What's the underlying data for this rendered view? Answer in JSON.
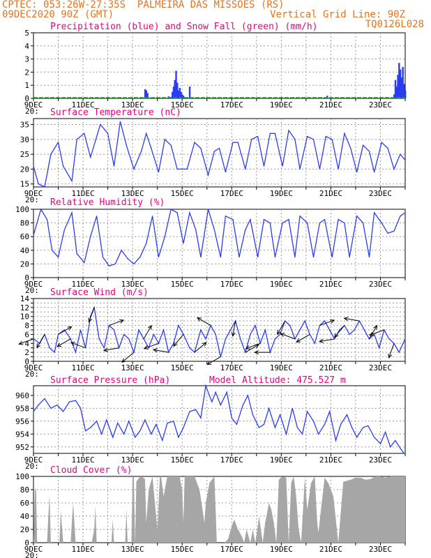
{
  "header": {
    "source": "CPTEC:",
    "coords": "053:26W-27:35S",
    "location": "PALMEIRA DAS MISSOES (RS)",
    "run": "09DEC2020 90Z (GMT)",
    "grid_note": "Vertical Grid Line: 90Z",
    "model_code": "TQ0126L028"
  },
  "x_ticks": [
    "9DEC",
    "11DEC",
    "13DEC",
    "15DEC",
    "17DEC",
    "19DEC",
    "21DEC",
    "23DEC"
  ],
  "year_fragment": "20:",
  "colors": {
    "header": "#e8731a",
    "title": "#e6007e",
    "line": "#2a3cf0",
    "snow": "#1aa51a",
    "cloud": "#a6a6a6"
  },
  "chart_data": [
    {
      "id": "precip",
      "type": "bar",
      "title": "Precipitation (blue) and Snow Fall (green) (mm/h)",
      "ylim": [
        0,
        5
      ],
      "yticks": [
        0,
        1,
        2,
        3,
        4,
        5
      ],
      "xlim": [
        0,
        15
      ],
      "grid": true,
      "x": [
        4.5,
        4.55,
        4.6,
        5.45,
        5.55,
        5.6,
        5.65,
        5.7,
        5.75,
        5.8,
        5.85,
        5.9,
        5.95,
        6.0,
        6.05,
        6.3,
        11.85,
        14.55,
        14.6,
        14.65,
        14.7,
        14.75,
        14.8,
        14.85,
        14.9,
        14.95,
        15.0
      ],
      "values": [
        0.7,
        0.6,
        0.4,
        0.15,
        0.1,
        0.5,
        0.9,
        1.4,
        2.1,
        1.2,
        0.6,
        0.8,
        0.5,
        0.3,
        0.2,
        0.9,
        0.2,
        0.3,
        1.4,
        0.9,
        1.8,
        2.7,
        2.2,
        1.6,
        2.4,
        1.1,
        0.6
      ],
      "snow": "0 throughout"
    },
    {
      "id": "temp",
      "type": "line",
      "title": "Surface Temperature (nC)",
      "ylim": [
        14,
        37
      ],
      "yticks": [
        15,
        20,
        25,
        30,
        35
      ],
      "xlim": [
        0,
        15
      ],
      "grid": true,
      "x": [
        0,
        0.2,
        0.45,
        0.7,
        1.0,
        1.2,
        1.55,
        1.75,
        2.05,
        2.3,
        2.7,
        3.0,
        3.25,
        3.5,
        3.75,
        4.05,
        4.35,
        4.55,
        4.75,
        5.05,
        5.3,
        5.55,
        5.8,
        6.2,
        6.5,
        6.75,
        7.05,
        7.3,
        7.5,
        7.75,
        8.05,
        8.25,
        8.55,
        8.8,
        9.05,
        9.3,
        9.55,
        9.75,
        10.05,
        10.3,
        10.55,
        10.75,
        11.05,
        11.3,
        11.55,
        11.8,
        12.05,
        12.3,
        12.55,
        12.8,
        13.05,
        13.3,
        13.55,
        13.75,
        14.05,
        14.3,
        14.55,
        14.8,
        15.0
      ],
      "values": [
        21,
        15,
        14,
        25,
        29,
        21,
        16,
        30,
        32,
        24,
        35,
        32,
        21,
        36,
        28,
        20,
        26,
        32,
        27,
        19,
        30,
        28,
        20,
        20,
        29,
        27,
        18,
        26,
        27,
        19,
        29,
        29,
        20,
        30,
        31,
        21,
        32,
        32,
        21,
        33,
        30,
        20,
        31,
        30,
        20,
        31,
        30,
        20,
        32,
        27,
        19,
        28,
        26,
        19,
        29,
        27,
        20,
        25,
        23
      ]
    },
    {
      "id": "rh",
      "type": "line",
      "title": "Relative Humidity (%)",
      "ylim": [
        0,
        100
      ],
      "yticks": [
        0,
        20,
        40,
        60,
        80,
        100
      ],
      "xlim": [
        0,
        15
      ],
      "grid": true,
      "x": [
        0,
        0.3,
        0.55,
        0.75,
        1.0,
        1.25,
        1.55,
        1.75,
        2.05,
        2.3,
        2.55,
        2.8,
        3.05,
        3.3,
        3.55,
        3.8,
        4.05,
        4.3,
        4.55,
        4.8,
        5.05,
        5.3,
        5.55,
        5.8,
        6.05,
        6.3,
        6.55,
        6.75,
        7.05,
        7.3,
        7.55,
        7.75,
        8.05,
        8.3,
        8.55,
        8.75,
        9.05,
        9.3,
        9.55,
        9.75,
        10.05,
        10.3,
        10.55,
        10.75,
        11.05,
        11.3,
        11.55,
        11.75,
        12.05,
        12.3,
        12.55,
        12.75,
        13.05,
        13.3,
        13.55,
        13.75,
        14.05,
        14.3,
        14.55,
        14.8,
        15.0
      ],
      "values": [
        62,
        100,
        85,
        40,
        30,
        70,
        95,
        35,
        22,
        60,
        90,
        30,
        17,
        20,
        40,
        28,
        20,
        30,
        50,
        90,
        30,
        60,
        100,
        95,
        50,
        95,
        70,
        30,
        100,
        70,
        30,
        90,
        85,
        30,
        70,
        85,
        30,
        85,
        80,
        30,
        80,
        85,
        30,
        90,
        80,
        30,
        80,
        85,
        30,
        85,
        80,
        30,
        90,
        80,
        30,
        95,
        80,
        65,
        68,
        90,
        95
      ]
    },
    {
      "id": "wind",
      "type": "line",
      "title": "Surface Wind (m/s)",
      "ylim": [
        0,
        14
      ],
      "yticks": [
        0,
        1,
        2,
        3,
        4,
        5,
        6,
        7,
        8,
        9,
        10,
        11,
        12,
        13,
        14
      ],
      "yticks_labeled": [
        0,
        2,
        4,
        6,
        8,
        10,
        12,
        14
      ],
      "xlim": [
        0,
        15
      ],
      "grid": true,
      "x": [
        0,
        0.25,
        0.45,
        0.65,
        0.85,
        1.0,
        1.25,
        1.5,
        1.7,
        1.9,
        2.1,
        2.3,
        2.45,
        2.65,
        2.85,
        3.05,
        3.25,
        3.45,
        3.65,
        3.85,
        4.05,
        4.25,
        4.45,
        4.65,
        4.85,
        5.05,
        5.25,
        5.45,
        5.65,
        5.85,
        6.05,
        6.3,
        6.5,
        6.75,
        6.95,
        7.15,
        7.35,
        7.55,
        7.75,
        7.95,
        8.15,
        8.35,
        8.55,
        8.75,
        8.95,
        9.15,
        9.35,
        9.55,
        9.75,
        9.95,
        10.15,
        10.35,
        10.55,
        10.75,
        10.95,
        11.15,
        11.35,
        11.55,
        11.75,
        11.95,
        12.15,
        12.35,
        12.55,
        12.75,
        12.95,
        13.15,
        13.35,
        13.55,
        13.75,
        13.95,
        14.15,
        14.35,
        14.55,
        14.75,
        15.0
      ],
      "values": [
        5,
        4,
        6,
        3,
        2,
        6,
        7,
        5,
        2,
        7,
        3,
        10,
        12,
        5,
        3,
        8,
        7,
        3,
        6,
        5,
        2,
        7,
        5,
        3,
        6,
        4,
        7,
        2,
        4,
        8,
        6,
        3,
        2,
        7,
        5,
        8,
        6,
        1,
        5,
        7,
        9,
        5,
        2,
        6,
        8,
        4,
        7,
        2,
        5,
        6,
        9,
        8,
        5,
        7,
        9,
        6,
        4,
        8,
        9,
        7,
        5,
        7,
        8,
        6,
        7,
        9,
        7,
        5,
        6,
        3,
        7,
        5,
        4,
        2,
        5
      ],
      "vectors": "wind direction arrows"
    },
    {
      "id": "pressure",
      "type": "line",
      "title": "Surface Pressure (hPa)",
      "annotation": "Model Altitude: 475.527 m",
      "ylim": [
        951,
        961.5
      ],
      "yticks": [
        952,
        954,
        956,
        958,
        960
      ],
      "xlim": [
        0,
        15
      ],
      "grid": true,
      "x": [
        0,
        0.2,
        0.45,
        0.7,
        0.95,
        1.2,
        1.45,
        1.7,
        1.9,
        2.1,
        2.3,
        2.55,
        2.75,
        2.95,
        3.2,
        3.4,
        3.65,
        3.85,
        4.1,
        4.3,
        4.5,
        4.75,
        4.95,
        5.2,
        5.4,
        5.65,
        5.85,
        6.05,
        6.3,
        6.55,
        6.75,
        6.95,
        7.2,
        7.35,
        7.55,
        7.8,
        8.0,
        8.2,
        8.45,
        8.65,
        8.85,
        9.1,
        9.3,
        9.5,
        9.75,
        9.95,
        10.2,
        10.45,
        10.65,
        10.85,
        11.05,
        11.3,
        11.5,
        11.75,
        11.95,
        12.2,
        12.4,
        12.65,
        12.85,
        13.05,
        13.3,
        13.5,
        13.75,
        14.0,
        14.2,
        14.4,
        14.6,
        14.8,
        14.95
      ],
      "values": [
        957.5,
        958.5,
        959.5,
        958.0,
        958.5,
        957.5,
        959.0,
        959.2,
        958.0,
        954.5,
        955.0,
        956.0,
        954.0,
        956.2,
        953.5,
        955.7,
        954.0,
        956.0,
        953.5,
        954.5,
        956.2,
        954.0,
        955.5,
        953.0,
        955.7,
        956.0,
        953.5,
        955.0,
        957.5,
        957.8,
        956.5,
        961.5,
        959.0,
        960.5,
        958.5,
        960.5,
        956.5,
        955.5,
        958.5,
        960.0,
        957.0,
        955.0,
        955.5,
        958.0,
        955.0,
        957.0,
        954.0,
        958.0,
        955.0,
        954.0,
        957.5,
        956.0,
        954.0,
        955.5,
        957.5,
        953.0,
        955.5,
        957.0,
        955.0,
        953.5,
        955.0,
        955.3,
        953.5,
        952.5,
        954.3,
        952.0,
        953.0,
        951.8,
        951.0
      ]
    },
    {
      "id": "cloud",
      "type": "area",
      "title": "Cloud Cover (%)",
      "ylim": [
        0,
        100
      ],
      "yticks": [
        0,
        20,
        40,
        60,
        80,
        100
      ],
      "xlim": [
        0,
        15
      ],
      "grid": true,
      "x": [
        0,
        0.05,
        0.1,
        0.15,
        0.3,
        0.45,
        0.55,
        0.6,
        0.65,
        0.7,
        1.05,
        1.1,
        1.2,
        1.4,
        1.5,
        1.55,
        1.6,
        1.7,
        1.85,
        2.0,
        2.3,
        2.35,
        2.45,
        2.5,
        2.55,
        2.65,
        2.85,
        3.0,
        3.15,
        3.2,
        3.25,
        3.4,
        3.6,
        3.7,
        3.75,
        3.8,
        3.95,
        4.0,
        4.05,
        4.1,
        4.15,
        4.3,
        4.35,
        4.5,
        4.55,
        4.65,
        4.8,
        4.9,
        5.0,
        5.1,
        5.15,
        5.25,
        5.4,
        5.5,
        5.6,
        5.7,
        5.9,
        6.0,
        6.05,
        6.1,
        6.2,
        6.3,
        6.5,
        6.7,
        6.9,
        6.95,
        7.1,
        7.3,
        7.4,
        7.6,
        7.7,
        7.85,
        8.0,
        8.1,
        8.25,
        8.4,
        8.5,
        8.6,
        8.75,
        8.85,
        8.95,
        9.05,
        9.1,
        9.25,
        9.35,
        9.5,
        9.6,
        9.7,
        9.8,
        9.9,
        10.05,
        10.2,
        10.3,
        10.4,
        10.5,
        10.6,
        10.7,
        10.8,
        10.95,
        11.05,
        11.2,
        11.35,
        11.45,
        11.5,
        11.6,
        11.75,
        11.9,
        12.1,
        12.3,
        12.5,
        12.8,
        13.0,
        13.2,
        13.4,
        13.6,
        13.8,
        14.0,
        14.2,
        14.4,
        14.6,
        14.8,
        15.0
      ],
      "values": [
        0,
        78,
        82,
        0,
        0,
        0,
        0,
        40,
        72,
        0,
        0,
        48,
        0,
        0,
        0,
        32,
        60,
        0,
        0,
        0,
        0,
        0,
        20,
        55,
        0,
        0,
        0,
        0,
        0,
        35,
        0,
        0,
        0,
        0,
        50,
        0,
        0,
        98,
        100,
        0,
        92,
        100,
        100,
        96,
        30,
        80,
        100,
        60,
        20,
        100,
        100,
        70,
        100,
        100,
        100,
        100,
        100,
        80,
        30,
        100,
        100,
        100,
        100,
        80,
        30,
        60,
        90,
        100,
        0,
        0,
        0,
        5,
        25,
        35,
        20,
        10,
        0,
        20,
        0,
        20,
        0,
        25,
        40,
        0,
        30,
        60,
        50,
        30,
        0,
        95,
        100,
        98,
        0,
        90,
        100,
        70,
        20,
        0,
        98,
        50,
        90,
        100,
        30,
        15,
        50,
        98,
        90,
        70,
        0,
        92,
        95,
        98,
        98,
        95,
        96,
        100,
        100,
        98,
        100,
        100,
        100,
        100
      ]
    }
  ],
  "panel_text": {
    "precip": "Precipitation (blue) and Snow Fall (green) (mm/h)",
    "temp": "Surface Temperature (nC)",
    "rh": "Relative Humidity (%)",
    "wind": "Surface Wind (m/s)",
    "pressure": "Surface Pressure (hPa)",
    "pressure_note": "Model Altitude: 475.527 m",
    "cloud": "Cloud Cover (%)"
  }
}
